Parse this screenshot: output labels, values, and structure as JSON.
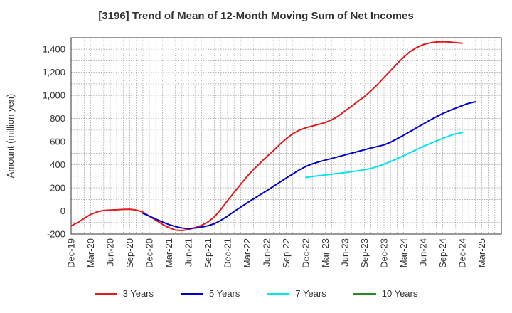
{
  "chart_data": {
    "type": "line",
    "title": "[3196]  Trend of Mean of 12-Month Moving Sum of Net Incomes",
    "xlabel": "",
    "ylabel": "Amount (million yen)",
    "ylim": [
      -200,
      1500
    ],
    "yticks": [
      -200,
      0,
      200,
      400,
      600,
      800,
      1000,
      1200,
      1400
    ],
    "ytick_labels": [
      "-200",
      "0",
      "200",
      "400",
      "600",
      "800",
      "1,000",
      "1,200",
      "1,400"
    ],
    "x_start": "Dec-19",
    "xlim_months": [
      0,
      66
    ],
    "xticks": [
      "Dec-19",
      "Mar-20",
      "Jun-20",
      "Sep-20",
      "Dec-20",
      "Mar-21",
      "Jun-21",
      "Sep-21",
      "Dec-21",
      "Mar-22",
      "Jun-22",
      "Sep-22",
      "Dec-22",
      "Mar-23",
      "Jun-23",
      "Sep-23",
      "Dec-23",
      "Mar-24",
      "Jun-24",
      "Sep-24",
      "Dec-24",
      "Mar-25"
    ],
    "grid": true,
    "legend_position": "bottom",
    "series": [
      {
        "name": "3 Years",
        "color": "#e31a1c",
        "points": [
          [
            "Dec-19",
            -130
          ],
          [
            "Jan-20",
            -100
          ],
          [
            "Feb-20",
            -65
          ],
          [
            "Mar-20",
            -30
          ],
          [
            "Apr-20",
            -8
          ],
          [
            "May-20",
            5
          ],
          [
            "Jun-20",
            8
          ],
          [
            "Jul-20",
            10
          ],
          [
            "Aug-20",
            13
          ],
          [
            "Sep-20",
            15
          ],
          [
            "Oct-20",
            8
          ],
          [
            "Nov-20",
            -10
          ],
          [
            "Dec-20",
            -45
          ],
          [
            "Jan-21",
            -80
          ],
          [
            "Feb-21",
            -115
          ],
          [
            "Mar-21",
            -145
          ],
          [
            "Apr-21",
            -165
          ],
          [
            "May-21",
            -170
          ],
          [
            "Jun-21",
            -160
          ],
          [
            "Jul-21",
            -145
          ],
          [
            "Aug-21",
            -125
          ],
          [
            "Sep-21",
            -95
          ],
          [
            "Oct-21",
            -50
          ],
          [
            "Nov-21",
            15
          ],
          [
            "Dec-21",
            90
          ],
          [
            "Jan-22",
            160
          ],
          [
            "Feb-22",
            230
          ],
          [
            "Mar-22",
            300
          ],
          [
            "Apr-22",
            360
          ],
          [
            "May-22",
            415
          ],
          [
            "Jun-22",
            470
          ],
          [
            "Jul-22",
            520
          ],
          [
            "Aug-22",
            575
          ],
          [
            "Sep-22",
            625
          ],
          [
            "Oct-22",
            668
          ],
          [
            "Nov-22",
            700
          ],
          [
            "Dec-22",
            720
          ],
          [
            "Jan-23",
            735
          ],
          [
            "Feb-23",
            750
          ],
          [
            "Mar-23",
            765
          ],
          [
            "Apr-23",
            790
          ],
          [
            "May-23",
            822
          ],
          [
            "Jun-23",
            865
          ],
          [
            "Jul-23",
            905
          ],
          [
            "Aug-23",
            950
          ],
          [
            "Sep-23",
            990
          ],
          [
            "Oct-23",
            1040
          ],
          [
            "Nov-23",
            1095
          ],
          [
            "Dec-23",
            1155
          ],
          [
            "Jan-24",
            1215
          ],
          [
            "Feb-24",
            1275
          ],
          [
            "Mar-24",
            1330
          ],
          [
            "Apr-24",
            1380
          ],
          [
            "May-24",
            1415
          ],
          [
            "Jun-24",
            1440
          ],
          [
            "Jul-24",
            1455
          ],
          [
            "Aug-24",
            1463
          ],
          [
            "Sep-24",
            1465
          ],
          [
            "Oct-24",
            1463
          ],
          [
            "Nov-24",
            1458
          ],
          [
            "Dec-24",
            1452
          ]
        ]
      },
      {
        "name": "5 Years",
        "color": "#0000cc",
        "points": [
          [
            "Nov-20",
            -20
          ],
          [
            "Dec-20",
            -45
          ],
          [
            "Jan-21",
            -70
          ],
          [
            "Feb-21",
            -95
          ],
          [
            "Mar-21",
            -118
          ],
          [
            "Apr-21",
            -135
          ],
          [
            "May-21",
            -148
          ],
          [
            "Jun-21",
            -152
          ],
          [
            "Jul-21",
            -148
          ],
          [
            "Aug-21",
            -140
          ],
          [
            "Sep-21",
            -128
          ],
          [
            "Oct-21",
            -110
          ],
          [
            "Nov-21",
            -80
          ],
          [
            "Dec-21",
            -45
          ],
          [
            "Jan-22",
            -5
          ],
          [
            "Feb-22",
            32
          ],
          [
            "Mar-22",
            70
          ],
          [
            "Apr-22",
            105
          ],
          [
            "May-22",
            140
          ],
          [
            "Jun-22",
            175
          ],
          [
            "Jul-22",
            212
          ],
          [
            "Aug-22",
            248
          ],
          [
            "Sep-22",
            285
          ],
          [
            "Oct-22",
            320
          ],
          [
            "Nov-22",
            355
          ],
          [
            "Dec-22",
            385
          ],
          [
            "Jan-23",
            408
          ],
          [
            "Feb-23",
            425
          ],
          [
            "Mar-23",
            440
          ],
          [
            "Apr-23",
            455
          ],
          [
            "May-23",
            470
          ],
          [
            "Jun-23",
            485
          ],
          [
            "Jul-23",
            500
          ],
          [
            "Aug-23",
            515
          ],
          [
            "Sep-23",
            530
          ],
          [
            "Oct-23",
            545
          ],
          [
            "Nov-23",
            558
          ],
          [
            "Dec-23",
            572
          ],
          [
            "Jan-24",
            595
          ],
          [
            "Feb-24",
            625
          ],
          [
            "Mar-24",
            655
          ],
          [
            "Apr-24",
            688
          ],
          [
            "May-24",
            720
          ],
          [
            "Jun-24",
            752
          ],
          [
            "Jul-24",
            785
          ],
          [
            "Aug-24",
            815
          ],
          [
            "Sep-24",
            843
          ],
          [
            "Oct-24",
            868
          ],
          [
            "Nov-24",
            890
          ],
          [
            "Dec-24",
            912
          ],
          [
            "Jan-25",
            932
          ],
          [
            "Feb-25",
            945
          ]
        ]
      },
      {
        "name": "7 Years",
        "color": "#00e5ee",
        "points": [
          [
            "Dec-22",
            290
          ],
          [
            "Jan-23",
            298
          ],
          [
            "Feb-23",
            305
          ],
          [
            "Mar-23",
            312
          ],
          [
            "Apr-23",
            318
          ],
          [
            "May-23",
            325
          ],
          [
            "Jun-23",
            332
          ],
          [
            "Jul-23",
            340
          ],
          [
            "Aug-23",
            348
          ],
          [
            "Sep-23",
            357
          ],
          [
            "Oct-23",
            368
          ],
          [
            "Nov-23",
            385
          ],
          [
            "Dec-23",
            405
          ],
          [
            "Jan-24",
            428
          ],
          [
            "Feb-24",
            452
          ],
          [
            "Mar-24",
            478
          ],
          [
            "Apr-24",
            505
          ],
          [
            "May-24",
            532
          ],
          [
            "Jun-24",
            558
          ],
          [
            "Jul-24",
            582
          ],
          [
            "Aug-24",
            605
          ],
          [
            "Sep-24",
            628
          ],
          [
            "Oct-24",
            650
          ],
          [
            "Nov-24",
            668
          ],
          [
            "Dec-24",
            678
          ]
        ]
      },
      {
        "name": "10 Years",
        "color": "#228b22",
        "points": []
      }
    ]
  }
}
